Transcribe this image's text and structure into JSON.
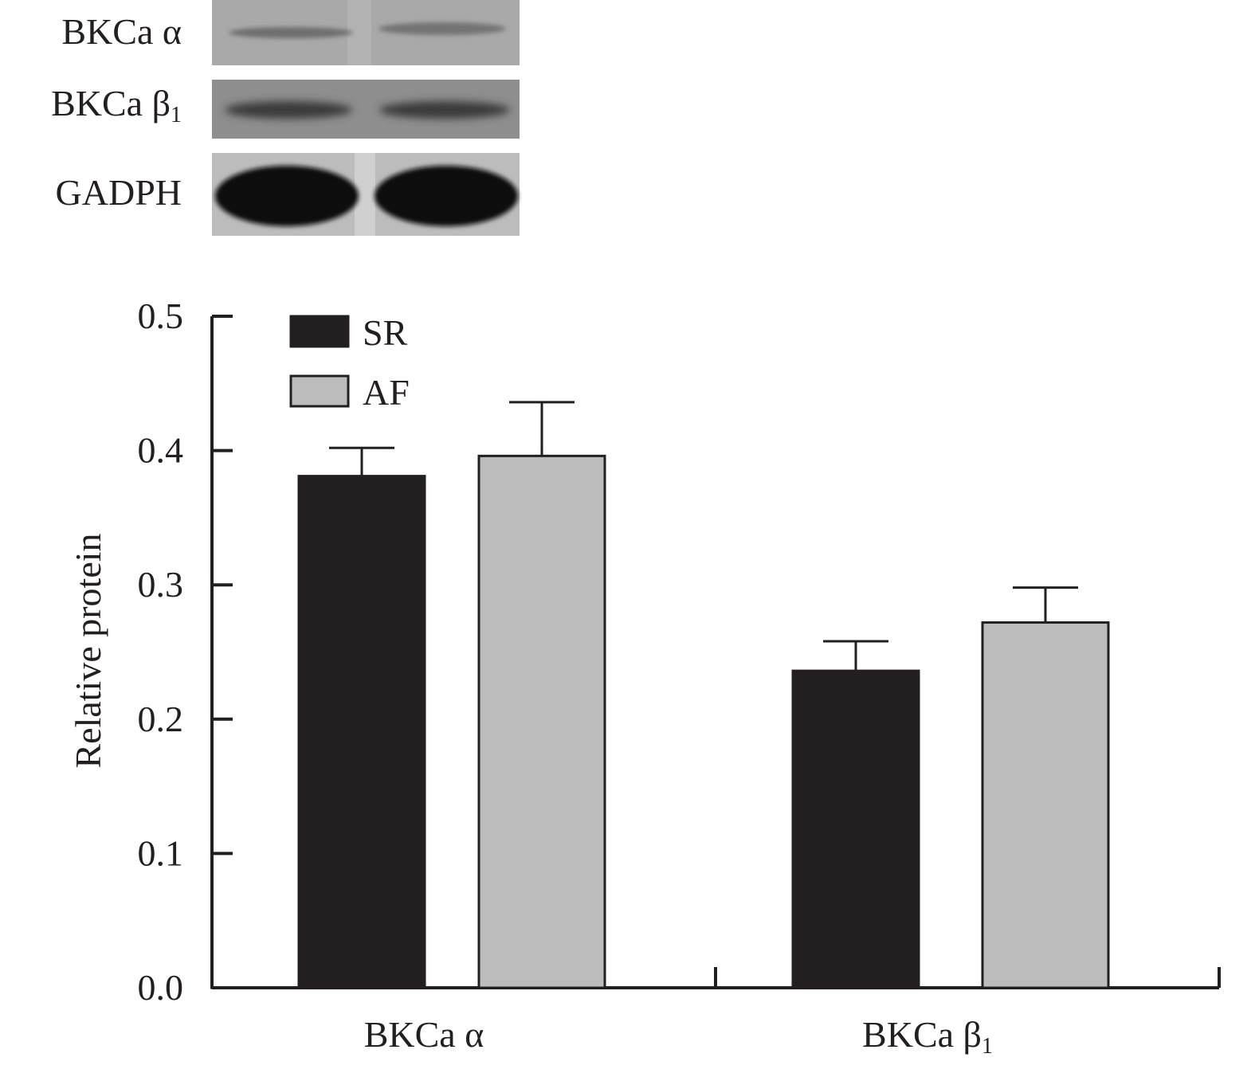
{
  "blot": {
    "rows": [
      {
        "label": "BKCa α",
        "sub": ""
      },
      {
        "label": "BKCa β",
        "sub": "1"
      },
      {
        "label": "GADPH",
        "sub": ""
      }
    ]
  },
  "chart_data": {
    "type": "bar",
    "title": "",
    "xlabel": "",
    "ylabel": "Relative protein",
    "categories": [
      {
        "label": "BKCa α",
        "sub": ""
      },
      {
        "label": "BKCa β",
        "sub": "1"
      }
    ],
    "series": [
      {
        "name": "SR",
        "color": "#231f20",
        "values": [
          0.381,
          0.236
        ],
        "errors": [
          0.021,
          0.022
        ]
      },
      {
        "name": "AF",
        "color": "#bcbcbc",
        "values": [
          0.396,
          0.272
        ],
        "errors": [
          0.04,
          0.026
        ]
      }
    ],
    "ylim": [
      0,
      0.5
    ],
    "yticks": [
      "0.0",
      "0.1",
      "0.2",
      "0.3",
      "0.4",
      "0.5"
    ],
    "grid": false,
    "legend": "top-left"
  }
}
